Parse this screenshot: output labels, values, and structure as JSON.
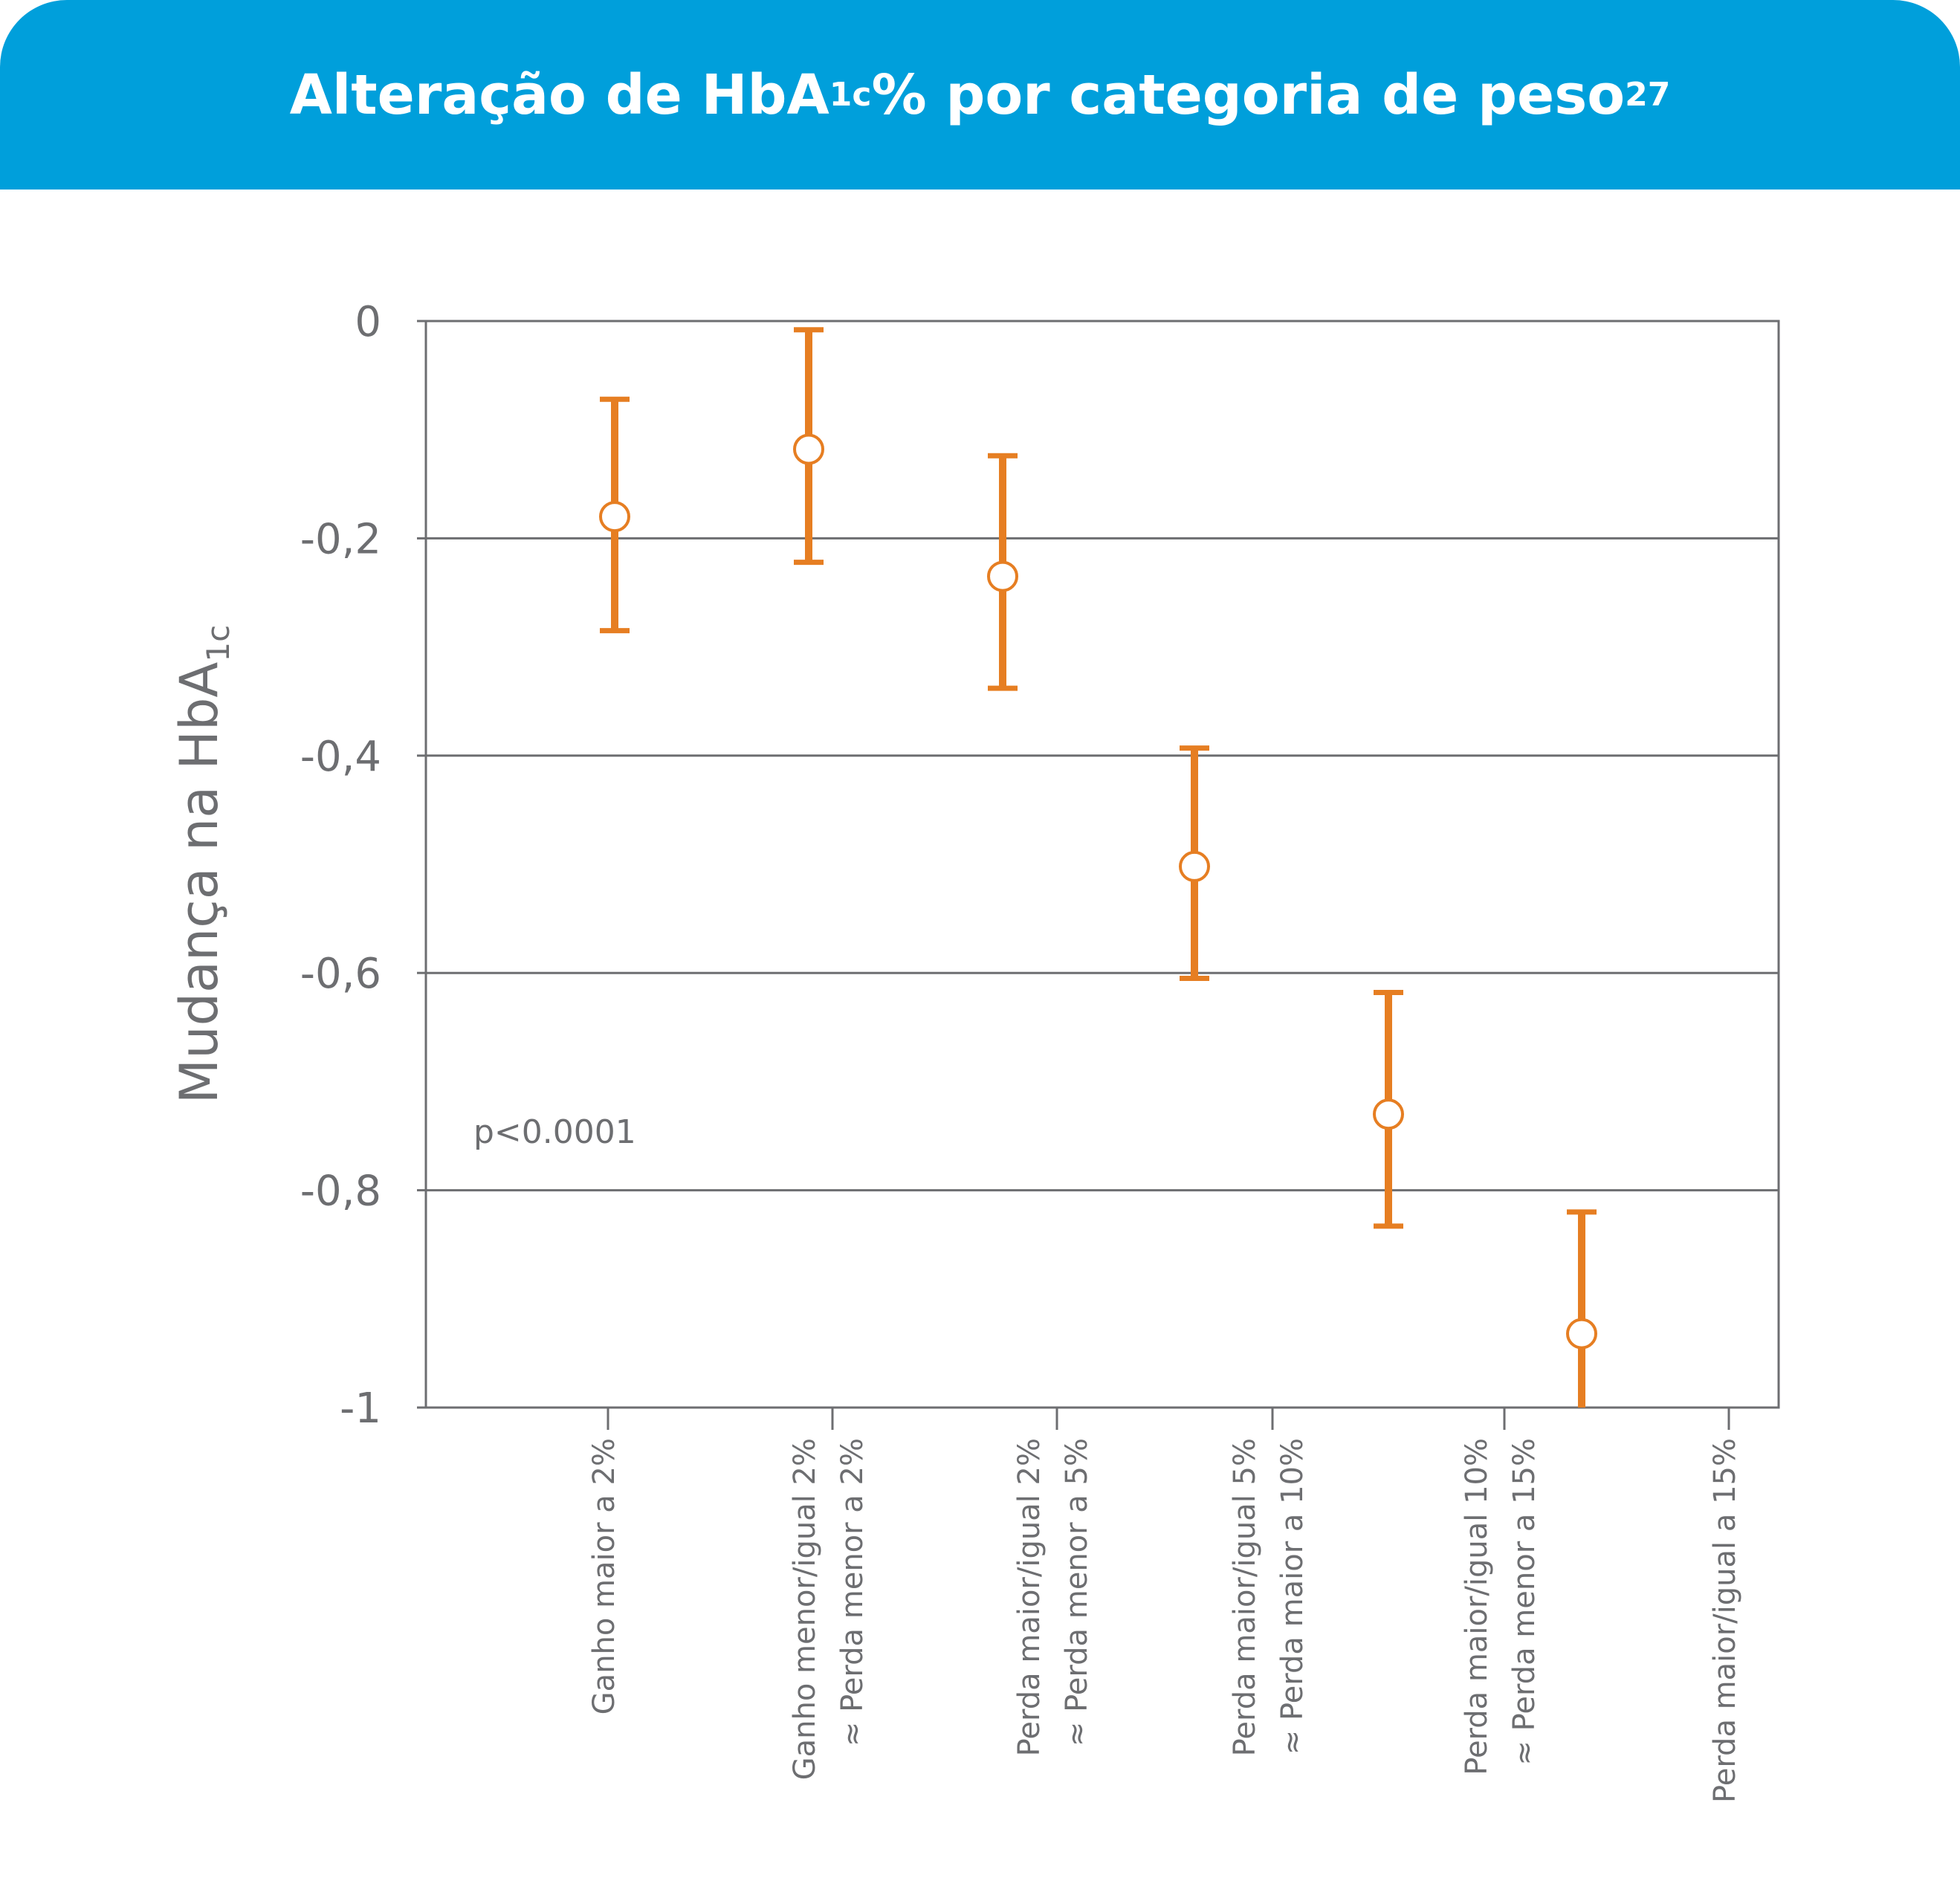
{
  "header": {
    "title_main": "Alteração de HbA",
    "title_sub": "1c",
    "title_rest": " % por categoria de peso",
    "title_sup": "27",
    "background_color": "#009fdb"
  },
  "chart_data": {
    "type": "scatter",
    "title": "Alteração de HbA1c % por categoria de peso27",
    "ylabel_main": "Mudança na HbA",
    "ylabel_sub": "1c",
    "xlabel": "",
    "ylim": [
      -1,
      0
    ],
    "yticks": [
      "0",
      "-0,2",
      "-0,4",
      "-0,6",
      "-0,8",
      "-1"
    ],
    "ytick_values": [
      0,
      -0.2,
      -0.4,
      -0.6,
      -0.8,
      -1
    ],
    "grid": true,
    "annotation": "p<0.0001",
    "marker_color": "#e67e22",
    "categories": [
      [
        "Ganho maior a 2%"
      ],
      [
        "Ganho menor/igual 2%",
        "≈ Perda menor a 2%"
      ],
      [
        "Perda maior/igual 2%",
        "≈ Perda menor a 5%"
      ],
      [
        "Perda maior/igual 5%",
        "≈ Perda maior a 10%"
      ],
      [
        "Perda maior/igual 10%",
        "≈ Perda menor a 15%"
      ],
      [
        "Perda maior/igual a 15%"
      ]
    ],
    "points": [
      {
        "y": -0.18,
        "lower": -0.285,
        "upper": -0.072
      },
      {
        "y": -0.118,
        "lower": -0.222,
        "upper": -0.008
      },
      {
        "y": -0.235,
        "lower": -0.338,
        "upper": -0.124
      },
      {
        "y": -0.502,
        "lower": -0.605,
        "upper": -0.393
      },
      {
        "y": -0.73,
        "lower": -0.833,
        "upper": -0.618
      },
      {
        "y": -0.932,
        "lower": -1.0,
        "upper": -0.82
      }
    ]
  }
}
